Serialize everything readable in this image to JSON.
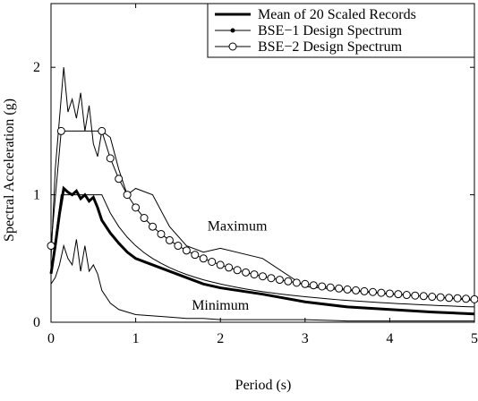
{
  "chart_data": {
    "type": "line",
    "xlabel": "Period (s)",
    "ylabel": "Spectral Acceleration (g)",
    "xlim": [
      0,
      5
    ],
    "xticks": [
      0,
      1,
      2,
      3,
      4,
      5
    ],
    "ylim": [
      0,
      2.5
    ],
    "yticks": [
      0,
      1,
      2
    ],
    "legend": "upper right",
    "series": [
      {
        "name": "Mean of 20 Scaled Records",
        "color": "#000000",
        "line_width": 3,
        "marker": null,
        "x": [
          0,
          0.05,
          0.1,
          0.15,
          0.2,
          0.25,
          0.3,
          0.35,
          0.4,
          0.45,
          0.5,
          0.55,
          0.6,
          0.7,
          0.8,
          0.9,
          1.0,
          1.2,
          1.4,
          1.6,
          1.8,
          2.0,
          2.5,
          3.0,
          3.5,
          4.0,
          4.5,
          5.0
        ],
        "values": [
          0.38,
          0.6,
          0.85,
          1.05,
          1.02,
          1.0,
          1.03,
          0.97,
          1.0,
          0.95,
          0.98,
          0.9,
          0.8,
          0.7,
          0.62,
          0.55,
          0.5,
          0.45,
          0.4,
          0.35,
          0.3,
          0.27,
          0.22,
          0.16,
          0.12,
          0.1,
          0.08,
          0.065
        ]
      },
      {
        "name": "BSE−1 Design Spectrum",
        "color": "#000000",
        "line_width": 1,
        "marker": "dot",
        "x": [
          0,
          0.12,
          0.6,
          0.7,
          0.8,
          0.9,
          1.0,
          1.1,
          1.2,
          1.3,
          1.4,
          1.5,
          1.6,
          1.7,
          1.8,
          1.9,
          2.0,
          2.1,
          2.2,
          2.3,
          2.4,
          2.5,
          2.6,
          2.7,
          2.8,
          2.9,
          3.0,
          3.1,
          3.2,
          3.3,
          3.4,
          3.5,
          3.6,
          3.7,
          3.8,
          3.9,
          4.0,
          4.1,
          4.2,
          4.3,
          4.4,
          4.5,
          4.6,
          4.7,
          4.8,
          4.9,
          5.0
        ],
        "values": [
          0.4,
          1,
          1,
          0.857,
          0.75,
          0.667,
          0.6,
          0.545,
          0.5,
          0.462,
          0.429,
          0.4,
          0.375,
          0.353,
          0.333,
          0.316,
          0.3,
          0.286,
          0.273,
          0.261,
          0.25,
          0.24,
          0.231,
          0.222,
          0.214,
          0.207,
          0.2,
          0.194,
          0.188,
          0.182,
          0.176,
          0.171,
          0.167,
          0.162,
          0.158,
          0.154,
          0.15,
          0.146,
          0.143,
          0.14,
          0.136,
          0.133,
          0.13,
          0.128,
          0.125,
          0.122,
          0.12
        ]
      },
      {
        "name": "BSE−2 Design Spectrum",
        "color": "#000000",
        "line_width": 1,
        "marker": "circle",
        "x": [
          0,
          0.12,
          0.6,
          0.7,
          0.8,
          0.9,
          1.0,
          1.1,
          1.2,
          1.3,
          1.4,
          1.5,
          1.6,
          1.7,
          1.8,
          1.9,
          2.0,
          2.1,
          2.2,
          2.3,
          2.4,
          2.5,
          2.6,
          2.7,
          2.8,
          2.9,
          3.0,
          3.1,
          3.2,
          3.3,
          3.4,
          3.5,
          3.6,
          3.7,
          3.8,
          3.9,
          4.0,
          4.1,
          4.2,
          4.3,
          4.4,
          4.5,
          4.6,
          4.7,
          4.8,
          4.9,
          5.0
        ],
        "values": [
          0.6,
          1.5,
          1.5,
          1.286,
          1.125,
          1.0,
          0.9,
          0.818,
          0.75,
          0.692,
          0.643,
          0.6,
          0.563,
          0.529,
          0.5,
          0.474,
          0.45,
          0.429,
          0.409,
          0.391,
          0.375,
          0.36,
          0.346,
          0.333,
          0.321,
          0.31,
          0.3,
          0.29,
          0.281,
          0.273,
          0.265,
          0.257,
          0.25,
          0.243,
          0.237,
          0.231,
          0.225,
          0.22,
          0.214,
          0.209,
          0.205,
          0.2,
          0.196,
          0.191,
          0.188,
          0.184,
          0.18
        ]
      }
    ],
    "envelopes": [
      {
        "label": "Maximum",
        "color": "#000000",
        "x": [
          0,
          0.05,
          0.1,
          0.15,
          0.2,
          0.25,
          0.3,
          0.35,
          0.4,
          0.45,
          0.5,
          0.55,
          0.6,
          0.7,
          0.8,
          0.9,
          1.0,
          1.2,
          1.4,
          1.6,
          1.8,
          2.0,
          2.5,
          3.0,
          3.5,
          4.0,
          4.5,
          5.0
        ],
        "values": [
          0.5,
          1.2,
          1.6,
          2.0,
          1.65,
          1.75,
          1.6,
          1.8,
          1.5,
          1.7,
          1.4,
          1.3,
          1.5,
          1.45,
          1.2,
          1.0,
          1.05,
          1.0,
          0.75,
          0.6,
          0.55,
          0.58,
          0.5,
          0.28,
          0.25,
          0.22,
          0.2,
          0.17
        ]
      },
      {
        "label": "Minimum",
        "color": "#000000",
        "x": [
          0,
          0.05,
          0.1,
          0.15,
          0.2,
          0.25,
          0.3,
          0.35,
          0.4,
          0.45,
          0.5,
          0.55,
          0.6,
          0.7,
          0.8,
          0.9,
          1.0,
          1.2,
          1.4,
          1.6,
          1.8,
          2.0,
          2.5,
          3.0,
          3.5,
          4.0,
          4.5,
          5.0
        ],
        "values": [
          0.3,
          0.35,
          0.45,
          0.6,
          0.5,
          0.45,
          0.65,
          0.4,
          0.6,
          0.4,
          0.45,
          0.38,
          0.25,
          0.15,
          0.1,
          0.08,
          0.06,
          0.05,
          0.04,
          0.03,
          0.03,
          0.02,
          0.02,
          0.02,
          0.01,
          0.01,
          0.01,
          0.01
        ]
      }
    ]
  }
}
